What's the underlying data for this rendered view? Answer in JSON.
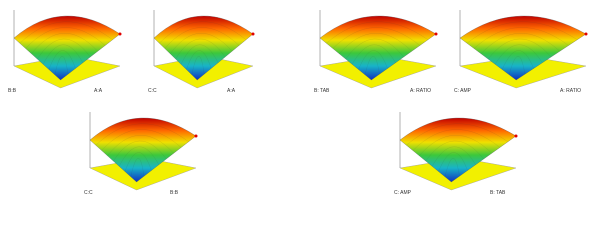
{
  "panels": [
    {
      "left_axis": "B:B",
      "right_axis": "A:A"
    },
    {
      "left_axis": "C:C",
      "right_axis": "A:A"
    },
    {
      "left_axis": "B: TAB",
      "right_axis": "A: RATIO"
    },
    {
      "left_axis": "C: AMP",
      "right_axis": "A: RATIO"
    },
    {
      "left_axis": "C:C",
      "right_axis": "B:B"
    },
    {
      "left_axis": "C: AMP",
      "right_axis": "B: TAB"
    }
  ]
}
